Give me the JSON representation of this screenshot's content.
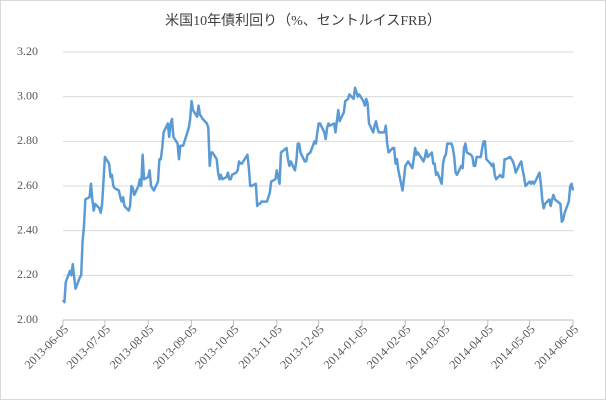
{
  "chart_data": {
    "type": "line",
    "title": "米国10年債利回り（%、セントルイスFRB）",
    "xlim": [
      "2013-06-05",
      "2014-06-05"
    ],
    "xticks": [
      "2013-06-05",
      "2013-07-05",
      "2013-08-05",
      "2013-09-05",
      "2013-10-05",
      "2013-11-05",
      "2013-12-05",
      "2014-01-05",
      "2014-02-05",
      "2014-03-05",
      "2014-04-05",
      "2014-05-05",
      "2014-06-05"
    ],
    "ylim": [
      2.0,
      3.2
    ],
    "yticks": [
      {
        "value": 2.0,
        "label": "2.00"
      },
      {
        "value": 2.2,
        "label": "2.20"
      },
      {
        "value": 2.4,
        "label": "2.40"
      },
      {
        "value": 2.6,
        "label": "2.60"
      },
      {
        "value": 2.8,
        "label": "2.80"
      },
      {
        "value": 3.0,
        "label": "3.00"
      },
      {
        "value": 3.2,
        "label": "3.20"
      }
    ],
    "grid": true,
    "series": [
      {
        "color": "#5b9bd5",
        "x": [
          "2013-06-05",
          "2013-06-06",
          "2013-06-07",
          "2013-06-10",
          "2013-06-11",
          "2013-06-12",
          "2013-06-13",
          "2013-06-14",
          "2013-06-17",
          "2013-06-18",
          "2013-06-19",
          "2013-06-20",
          "2013-06-21",
          "2013-06-24",
          "2013-06-25",
          "2013-06-26",
          "2013-06-27",
          "2013-06-28",
          "2013-07-01",
          "2013-07-02",
          "2013-07-03",
          "2013-07-05",
          "2013-07-08",
          "2013-07-09",
          "2013-07-10",
          "2013-07-11",
          "2013-07-12",
          "2013-07-15",
          "2013-07-16",
          "2013-07-17",
          "2013-07-18",
          "2013-07-19",
          "2013-07-22",
          "2013-07-23",
          "2013-07-24",
          "2013-07-25",
          "2013-07-26",
          "2013-07-29",
          "2013-07-30",
          "2013-07-31",
          "2013-08-01",
          "2013-08-02",
          "2013-08-05",
          "2013-08-06",
          "2013-08-07",
          "2013-08-08",
          "2013-08-09",
          "2013-08-12",
          "2013-08-13",
          "2013-08-14",
          "2013-08-15",
          "2013-08-16",
          "2013-08-19",
          "2013-08-20",
          "2013-08-21",
          "2013-08-22",
          "2013-08-23",
          "2013-08-26",
          "2013-08-27",
          "2013-08-28",
          "2013-08-29",
          "2013-08-30",
          "2013-09-03",
          "2013-09-04",
          "2013-09-05",
          "2013-09-06",
          "2013-09-09",
          "2013-09-10",
          "2013-09-11",
          "2013-09-12",
          "2013-09-13",
          "2013-09-16",
          "2013-09-17",
          "2013-09-18",
          "2013-09-19",
          "2013-09-20",
          "2013-09-23",
          "2013-09-24",
          "2013-09-25",
          "2013-09-26",
          "2013-09-27",
          "2013-09-30",
          "2013-10-01",
          "2013-10-02",
          "2013-10-03",
          "2013-10-04",
          "2013-10-07",
          "2013-10-08",
          "2013-10-09",
          "2013-10-10",
          "2013-10-11",
          "2013-10-15",
          "2013-10-16",
          "2013-10-17",
          "2013-10-18",
          "2013-10-21",
          "2013-10-22",
          "2013-10-23",
          "2013-10-24",
          "2013-10-25",
          "2013-10-28",
          "2013-10-29",
          "2013-10-30",
          "2013-10-31",
          "2013-11-01",
          "2013-11-04",
          "2013-11-05",
          "2013-11-06",
          "2013-11-07",
          "2013-11-08",
          "2013-11-12",
          "2013-11-13",
          "2013-11-14",
          "2013-11-15",
          "2013-11-18",
          "2013-11-19",
          "2013-11-20",
          "2013-11-21",
          "2013-11-22",
          "2013-11-25",
          "2013-11-26",
          "2013-11-27",
          "2013-11-29",
          "2013-12-02",
          "2013-12-03",
          "2013-12-04",
          "2013-12-05",
          "2013-12-06",
          "2013-12-09",
          "2013-12-10",
          "2013-12-11",
          "2013-12-12",
          "2013-12-13",
          "2013-12-16",
          "2013-12-17",
          "2013-12-18",
          "2013-12-19",
          "2013-12-20",
          "2013-12-23",
          "2013-12-24",
          "2013-12-26",
          "2013-12-27",
          "2013-12-30",
          "2013-12-31",
          "2014-01-02",
          "2014-01-03",
          "2014-01-06",
          "2014-01-07",
          "2014-01-08",
          "2014-01-09",
          "2014-01-10",
          "2014-01-13",
          "2014-01-14",
          "2014-01-15",
          "2014-01-16",
          "2014-01-17",
          "2014-01-21",
          "2014-01-22",
          "2014-01-23",
          "2014-01-24",
          "2014-01-27",
          "2014-01-28",
          "2014-01-29",
          "2014-01-30",
          "2014-01-31",
          "2014-02-03",
          "2014-02-04",
          "2014-02-05",
          "2014-02-06",
          "2014-02-07",
          "2014-02-10",
          "2014-02-11",
          "2014-02-12",
          "2014-02-13",
          "2014-02-14",
          "2014-02-18",
          "2014-02-19",
          "2014-02-20",
          "2014-02-21",
          "2014-02-24",
          "2014-02-25",
          "2014-02-26",
          "2014-02-27",
          "2014-02-28",
          "2014-03-03",
          "2014-03-04",
          "2014-03-05",
          "2014-03-06",
          "2014-03-07",
          "2014-03-10",
          "2014-03-11",
          "2014-03-12",
          "2014-03-13",
          "2014-03-14",
          "2014-03-17",
          "2014-03-18",
          "2014-03-19",
          "2014-03-20",
          "2014-03-21",
          "2014-03-24",
          "2014-03-25",
          "2014-03-26",
          "2014-03-27",
          "2014-03-28",
          "2014-03-31",
          "2014-04-01",
          "2014-04-02",
          "2014-04-03",
          "2014-04-04",
          "2014-04-07",
          "2014-04-08",
          "2014-04-09",
          "2014-04-10",
          "2014-04-11",
          "2014-04-14",
          "2014-04-15",
          "2014-04-16",
          "2014-04-17",
          "2014-04-18",
          "2014-04-21",
          "2014-04-22",
          "2014-04-23",
          "2014-04-24",
          "2014-04-25",
          "2014-04-28",
          "2014-04-29",
          "2014-04-30",
          "2014-05-01",
          "2014-05-02",
          "2014-05-05",
          "2014-05-06",
          "2014-05-07",
          "2014-05-08",
          "2014-05-09",
          "2014-05-12",
          "2014-05-13",
          "2014-05-14",
          "2014-05-15",
          "2014-05-16",
          "2014-05-19",
          "2014-05-20",
          "2014-05-21",
          "2014-05-22",
          "2014-05-23",
          "2014-05-27",
          "2014-05-28",
          "2014-05-29",
          "2014-05-30",
          "2014-06-02",
          "2014-06-03",
          "2014-06-04",
          "2014-06-05"
        ],
        "values": [
          2.09,
          2.08,
          2.17,
          2.22,
          2.2,
          2.25,
          2.19,
          2.14,
          2.19,
          2.2,
          2.35,
          2.42,
          2.54,
          2.55,
          2.61,
          2.54,
          2.49,
          2.52,
          2.5,
          2.48,
          2.52,
          2.73,
          2.7,
          2.64,
          2.65,
          2.6,
          2.59,
          2.58,
          2.55,
          2.53,
          2.55,
          2.51,
          2.49,
          2.51,
          2.6,
          2.59,
          2.56,
          2.6,
          2.63,
          2.6,
          2.74,
          2.63,
          2.64,
          2.67,
          2.6,
          2.59,
          2.58,
          2.62,
          2.72,
          2.72,
          2.77,
          2.84,
          2.88,
          2.82,
          2.88,
          2.9,
          2.82,
          2.79,
          2.72,
          2.78,
          2.78,
          2.78,
          2.86,
          2.9,
          2.98,
          2.94,
          2.91,
          2.96,
          2.92,
          2.91,
          2.9,
          2.88,
          2.86,
          2.69,
          2.75,
          2.75,
          2.72,
          2.66,
          2.63,
          2.65,
          2.63,
          2.64,
          2.66,
          2.63,
          2.63,
          2.65,
          2.66,
          2.67,
          2.71,
          2.7,
          2.7,
          2.74,
          2.68,
          2.6,
          2.6,
          2.61,
          2.51,
          2.52,
          2.52,
          2.53,
          2.53,
          2.53,
          2.55,
          2.57,
          2.62,
          2.63,
          2.67,
          2.64,
          2.61,
          2.75,
          2.77,
          2.72,
          2.69,
          2.71,
          2.67,
          2.71,
          2.79,
          2.79,
          2.75,
          2.71,
          2.71,
          2.74,
          2.75,
          2.8,
          2.79,
          2.84,
          2.88,
          2.88,
          2.84,
          2.81,
          2.86,
          2.88,
          2.87,
          2.88,
          2.84,
          2.89,
          2.94,
          2.89,
          2.93,
          2.98,
          2.99,
          3.01,
          2.99,
          3.04,
          3.0,
          3.01,
          2.98,
          2.96,
          2.99,
          2.97,
          2.88,
          2.84,
          2.87,
          2.89,
          2.86,
          2.84,
          2.84,
          2.87,
          2.79,
          2.75,
          2.77,
          2.77,
          2.7,
          2.72,
          2.67,
          2.58,
          2.63,
          2.69,
          2.7,
          2.71,
          2.68,
          2.72,
          2.77,
          2.74,
          2.75,
          2.71,
          2.73,
          2.76,
          2.73,
          2.75,
          2.7,
          2.7,
          2.65,
          2.66,
          2.61,
          2.7,
          2.73,
          2.74,
          2.79,
          2.79,
          2.77,
          2.73,
          2.66,
          2.65,
          2.69,
          2.68,
          2.77,
          2.79,
          2.75,
          2.74,
          2.73,
          2.69,
          2.69,
          2.73,
          2.73,
          2.77,
          2.8,
          2.8,
          2.72,
          2.7,
          2.69,
          2.7,
          2.65,
          2.63,
          2.65,
          2.64,
          2.64,
          2.72,
          2.72,
          2.73,
          2.72,
          2.71,
          2.69,
          2.66,
          2.7,
          2.71,
          2.67,
          2.64,
          2.6,
          2.62,
          2.61,
          2.62,
          2.61,
          2.62,
          2.66,
          2.61,
          2.54,
          2.5,
          2.52,
          2.54,
          2.51,
          2.54,
          2.56,
          2.54,
          2.52,
          2.44,
          2.45,
          2.48,
          2.53,
          2.6,
          2.61,
          2.58
        ]
      }
    ]
  }
}
